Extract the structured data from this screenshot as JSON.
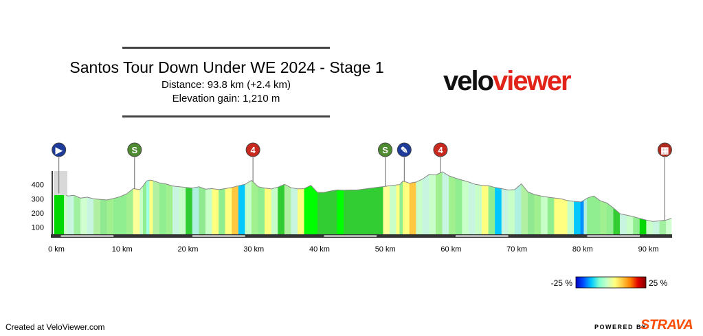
{
  "header": {
    "title": "Santos Tour Down Under WE 2024 - Stage 1",
    "distance": "Distance: 93.8 km (+2.4 km)",
    "elevation": "Elevation gain: 1,210 m"
  },
  "logo": {
    "part1": "velo",
    "part2": "viewer"
  },
  "footer": {
    "created": "Created at VeloViewer.com",
    "powered": "POWERED BY",
    "strava": "STRAVA"
  },
  "legend": {
    "min": "-25 %",
    "max": "25 %",
    "colors": [
      "#0000c8",
      "#0050ff",
      "#00c8ff",
      "#80ffd0",
      "#c8ffc8",
      "#ffff80",
      "#ffc840",
      "#ff8000",
      "#e00000",
      "#800000"
    ]
  },
  "chart_data": {
    "type": "area",
    "title": "",
    "xlabel": "",
    "ylabel": "",
    "xlim": [
      0,
      93.8
    ],
    "ylim": [
      50,
      500
    ],
    "x_ticks": [
      "0 km",
      "10 km",
      "20 km",
      "30 km",
      "40 km",
      "50 km",
      "60 km",
      "70 km",
      "80 km",
      "90 km"
    ],
    "x_tick_values": [
      0,
      10,
      20,
      30,
      40,
      50,
      60,
      70,
      80,
      90
    ],
    "y_ticks": [
      "100",
      "200",
      "300",
      "400"
    ],
    "y_tick_values": [
      100,
      200,
      300,
      400
    ],
    "profile": [
      [
        0,
        340
      ],
      [
        1.5,
        338
      ],
      [
        2,
        320
      ],
      [
        3,
        325
      ],
      [
        4,
        305
      ],
      [
        5,
        312
      ],
      [
        6,
        300
      ],
      [
        7,
        296
      ],
      [
        8,
        292
      ],
      [
        9,
        302
      ],
      [
        10,
        315
      ],
      [
        11,
        335
      ],
      [
        12,
        372
      ],
      [
        13,
        365
      ],
      [
        13.5,
        390
      ],
      [
        14,
        425
      ],
      [
        14.5,
        432
      ],
      [
        15,
        428
      ],
      [
        16,
        412
      ],
      [
        17,
        404
      ],
      [
        18,
        390
      ],
      [
        19,
        385
      ],
      [
        20,
        380
      ],
      [
        21,
        375
      ],
      [
        22,
        385
      ],
      [
        23,
        368
      ],
      [
        24,
        372
      ],
      [
        25,
        365
      ],
      [
        26,
        372
      ],
      [
        27,
        380
      ],
      [
        28,
        392
      ],
      [
        29,
        402
      ],
      [
        30,
        430
      ],
      [
        31,
        385
      ],
      [
        32,
        375
      ],
      [
        33,
        370
      ],
      [
        34,
        382
      ],
      [
        35,
        402
      ],
      [
        36,
        378
      ],
      [
        37,
        370
      ],
      [
        38,
        372
      ],
      [
        39,
        395
      ],
      [
        40,
        345
      ],
      [
        41,
        345
      ],
      [
        42,
        355
      ],
      [
        43,
        362
      ],
      [
        44,
        360
      ],
      [
        45,
        362
      ],
      [
        46,
        362
      ],
      [
        47,
        368
      ],
      [
        48,
        374
      ],
      [
        49,
        380
      ],
      [
        50,
        386
      ],
      [
        51,
        392
      ],
      [
        52,
        398
      ],
      [
        52.5,
        400
      ],
      [
        53,
        425
      ],
      [
        54,
        410
      ],
      [
        55,
        418
      ],
      [
        56,
        440
      ],
      [
        57,
        472
      ],
      [
        58,
        468
      ],
      [
        59,
        490
      ],
      [
        60,
        462
      ],
      [
        61,
        445
      ],
      [
        62,
        432
      ],
      [
        63,
        418
      ],
      [
        64,
        402
      ],
      [
        65,
        395
      ],
      [
        66,
        392
      ],
      [
        67,
        380
      ],
      [
        68,
        372
      ],
      [
        69,
        362
      ],
      [
        70,
        365
      ],
      [
        71,
        405
      ],
      [
        72,
        348
      ],
      [
        73,
        330
      ],
      [
        74,
        320
      ],
      [
        75,
        312
      ],
      [
        76,
        306
      ],
      [
        77,
        300
      ],
      [
        78,
        288
      ],
      [
        79,
        282
      ],
      [
        80,
        278
      ],
      [
        80.5,
        290
      ],
      [
        81,
        305
      ],
      [
        82,
        320
      ],
      [
        83,
        286
      ],
      [
        84,
        270
      ],
      [
        85,
        235
      ],
      [
        86,
        195
      ],
      [
        87,
        185
      ],
      [
        88,
        175
      ],
      [
        89,
        162
      ],
      [
        90,
        150
      ],
      [
        91,
        140
      ],
      [
        92,
        145
      ],
      [
        93,
        150
      ],
      [
        93.8,
        162
      ]
    ],
    "segment_colors": [
      "#00d800",
      "#c8ffc8",
      "#c8f5e0",
      "#a0f0a0",
      "#d0ffd0",
      "#c8f5e0",
      "#b0f0a0",
      "#90e890",
      "#a0f090",
      "#90ee90",
      "#90ee90",
      "#a0f090",
      "#ffff99",
      "#c8ffc8",
      "#90ee90",
      "#a0ffe0",
      "#ffff80",
      "#b0f0a0",
      "#90ee90",
      "#a0f090",
      "#c8f5e0",
      "#c8ffc8",
      "#32cd32",
      "#b0f0e0",
      "#90e890",
      "#c8ffc8",
      "#ffff80",
      "#90ee90",
      "#ffff80",
      "#ffc840",
      "#00c8ff",
      "#c8ffc8",
      "#a0f090",
      "#90ee90",
      "#ffff80",
      "#c8ffc8",
      "#32cd32",
      "#b0f0a0",
      "#c8f5e0",
      "#ffff80",
      "#00ff00",
      "#00ff00",
      "#32cd32",
      "#32cd32",
      "#32cd32",
      "#00ff00",
      "#32cd32",
      "#32cd32",
      "#32cd32",
      "#32cd32",
      "#32cd32",
      "#32cd32",
      "#ffff99",
      "#c8ffc8",
      "#ffff80",
      "#90ee90",
      "#ffff80",
      "#ffc840",
      "#c8ffc8",
      "#c8f5e0",
      "#c8ffc8",
      "#a0f090",
      "#c8f5e0",
      "#a0f090",
      "#90ee90",
      "#c8ffc8",
      "#c8f5e0",
      "#c8ffc8",
      "#ffff80",
      "#90ee90",
      "#00c8ff",
      "#c8f5e0",
      "#c8ffc8",
      "#b0f0e0",
      "#b0f0a0",
      "#90e890",
      "#a0f090",
      "#c8ffc8",
      "#90ee90",
      "#ffff80",
      "#ffff80",
      "#c8ffc8",
      "#00c8ff",
      "#0090ff",
      "#b0f0e0",
      "#90ee90",
      "#90ee90",
      "#a0f090",
      "#90ee90",
      "#32cd32",
      "#c8f5e0",
      "#c8ffc8",
      "#90ee90"
    ],
    "markers": [
      {
        "km": 0.7,
        "type": "start",
        "label": "▶",
        "color": "#1f3b99"
      },
      {
        "km": 12.2,
        "type": "sprint",
        "label": "S",
        "color": "#4e8a2f"
      },
      {
        "km": 30.2,
        "type": "kom",
        "label": "4",
        "color": "#c8281e"
      },
      {
        "km": 50.3,
        "type": "sprint",
        "label": "S",
        "color": "#4e8a2f"
      },
      {
        "km": 53.2,
        "type": "feed",
        "label": "✎",
        "color": "#1f3b99"
      },
      {
        "km": 58.7,
        "type": "kom",
        "label": "4",
        "color": "#c8281e"
      },
      {
        "km": 92.8,
        "type": "finish",
        "label": "▦",
        "color": "#b02c20"
      }
    ]
  }
}
